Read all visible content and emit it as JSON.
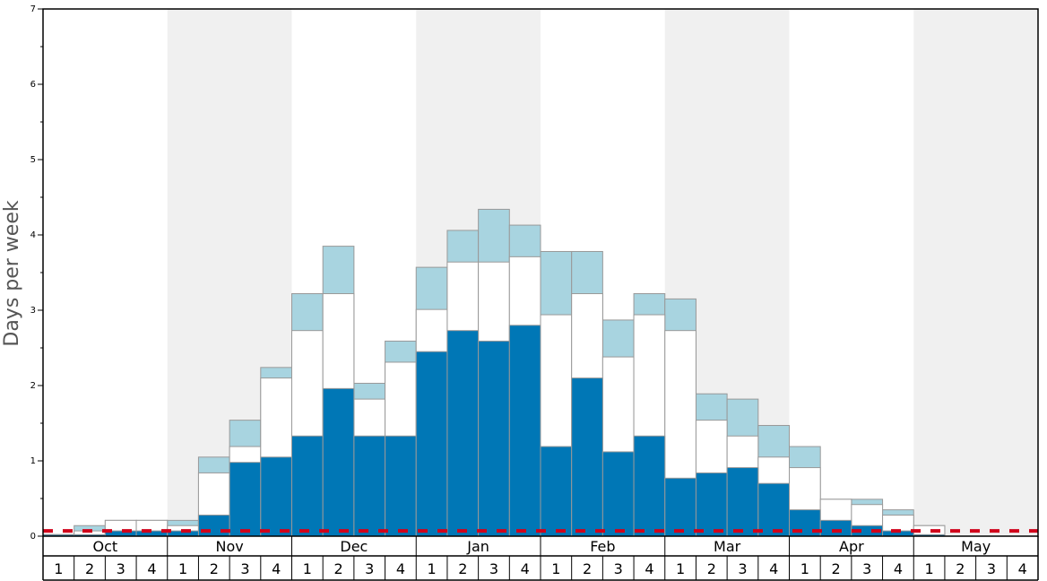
{
  "chart_data": {
    "type": "bar",
    "ylabel": "Days per week",
    "ylim": [
      0,
      7
    ],
    "y_ticks": [
      "0",
      "1",
      "2",
      "3",
      "4",
      "5",
      "6",
      "7"
    ],
    "months": [
      "Oct",
      "Nov",
      "Dec",
      "Jan",
      "Feb",
      "Mar",
      "Apr",
      "May"
    ],
    "weeks": [
      "1",
      "2",
      "3",
      "4"
    ],
    "categories": [
      "Oct 1",
      "Oct 2",
      "Oct 3",
      "Oct 4",
      "Nov 1",
      "Nov 2",
      "Nov 3",
      "Nov 4",
      "Dec 1",
      "Dec 2",
      "Dec 3",
      "Dec 4",
      "Jan 1",
      "Jan 2",
      "Jan 3",
      "Jan 4",
      "Feb 1",
      "Feb 2",
      "Feb 3",
      "Feb 4",
      "Mar 1",
      "Mar 2",
      "Mar 3",
      "Mar 4",
      "Apr 1",
      "Apr 2",
      "Apr 3",
      "Apr 4",
      "May 1",
      "May 2",
      "May 3",
      "May 4"
    ],
    "series": [
      {
        "color": "#0077b6",
        "values": [
          0.02,
          0.02,
          0.07,
          0.07,
          0.07,
          0.28,
          0.98,
          1.05,
          1.33,
          1.96,
          1.33,
          1.33,
          2.45,
          2.73,
          2.59,
          2.8,
          1.19,
          2.1,
          1.12,
          1.33,
          0.77,
          0.84,
          0.91,
          0.7,
          0.35,
          0.21,
          0.14,
          0.07,
          0.02,
          0,
          0,
          0
        ]
      },
      {
        "color": "#ffffff",
        "values": [
          0.02,
          0.07,
          0.21,
          0.21,
          0.14,
          0.84,
          1.19,
          2.1,
          2.73,
          3.22,
          1.82,
          2.31,
          3.01,
          3.64,
          3.64,
          3.71,
          2.94,
          3.22,
          2.38,
          2.94,
          2.73,
          1.54,
          1.33,
          1.05,
          0.91,
          0.49,
          0.42,
          0.28,
          0.14,
          0,
          0,
          0
        ]
      },
      {
        "color": "#a8d4e0",
        "values": [
          0.02,
          0.14,
          0.21,
          0.21,
          0.21,
          1.05,
          1.54,
          2.24,
          3.22,
          3.85,
          2.03,
          2.59,
          3.57,
          4.06,
          4.34,
          4.13,
          3.78,
          3.78,
          2.87,
          3.22,
          3.15,
          1.89,
          1.82,
          1.47,
          1.19,
          0.49,
          0.49,
          0.35,
          0.14,
          0,
          0,
          0
        ]
      }
    ],
    "reference_line": {
      "value": 0.07,
      "color": "#d0021b",
      "style": "dashed"
    },
    "month_shading": [
      "#ffffff",
      "#f0f0f0",
      "#ffffff",
      "#f0f0f0",
      "#ffffff",
      "#f0f0f0",
      "#ffffff",
      "#f0f0f0"
    ],
    "grid": false
  }
}
